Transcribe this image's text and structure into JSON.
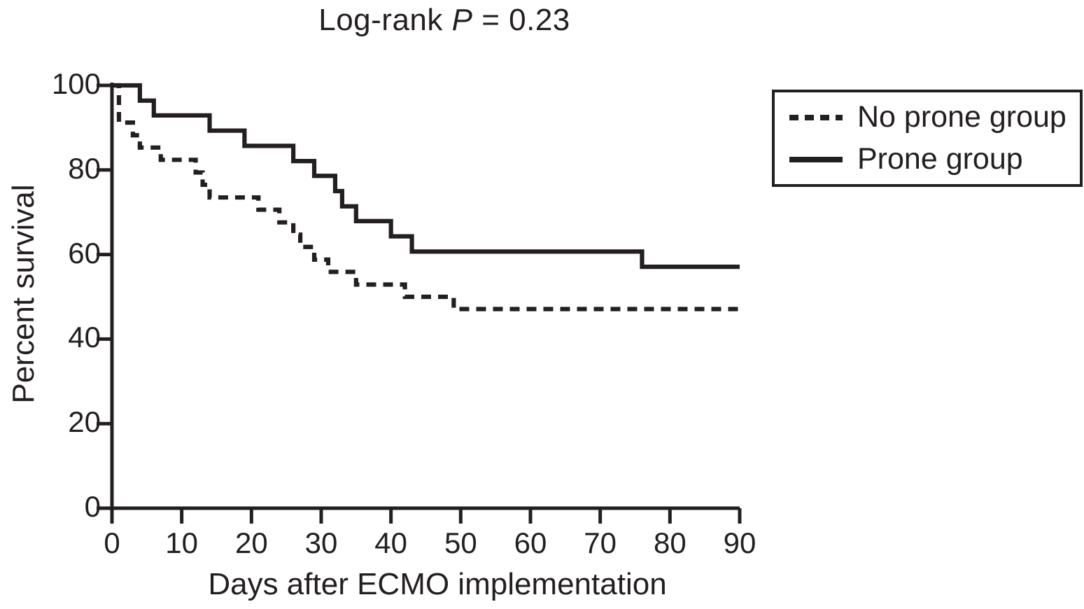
{
  "figure": {
    "title_prefix": "Log-rank ",
    "title_p": "P",
    "title_suffix": " = 0.23"
  },
  "colors": {
    "line": "#231f20",
    "text": "#231f20",
    "background": "#ffffff"
  },
  "chart_data": {
    "type": "line",
    "subtype": "kaplan-meier-step",
    "title": "Log-rank P = 0.23",
    "xlabel": "Days after ECMO implementation",
    "ylabel": "Percent survival",
    "xlim": [
      0,
      90
    ],
    "ylim": [
      0,
      100
    ],
    "x_ticks": [
      0,
      10,
      20,
      30,
      40,
      50,
      60,
      70,
      80,
      90
    ],
    "y_ticks": [
      0,
      20,
      40,
      60,
      80,
      100
    ],
    "grid": false,
    "legend_position": "top-right",
    "series": [
      {
        "name": "No prone group",
        "line_style": "dashed",
        "steps": [
          [
            0,
            100
          ],
          [
            1,
            91.2
          ],
          [
            3,
            88.2
          ],
          [
            4,
            85.3
          ],
          [
            7,
            82.4
          ],
          [
            12,
            79.4
          ],
          [
            13,
            76.5
          ],
          [
            14,
            73.5
          ],
          [
            21,
            70.6
          ],
          [
            24,
            67.6
          ],
          [
            26,
            64.7
          ],
          [
            27,
            61.8
          ],
          [
            29,
            58.8
          ],
          [
            31,
            55.9
          ],
          [
            35,
            52.9
          ],
          [
            42,
            50.0
          ],
          [
            49,
            47.1
          ],
          [
            90,
            47.1
          ]
        ]
      },
      {
        "name": "Prone group",
        "line_style": "solid",
        "steps": [
          [
            0,
            100
          ],
          [
            4,
            96.4
          ],
          [
            6,
            92.9
          ],
          [
            14,
            89.3
          ],
          [
            19,
            85.7
          ],
          [
            26,
            82.1
          ],
          [
            29,
            78.6
          ],
          [
            32,
            75.0
          ],
          [
            33,
            71.4
          ],
          [
            35,
            67.9
          ],
          [
            40,
            64.3
          ],
          [
            43,
            60.7
          ],
          [
            76,
            57.1
          ],
          [
            90,
            57.1
          ]
        ]
      }
    ]
  }
}
